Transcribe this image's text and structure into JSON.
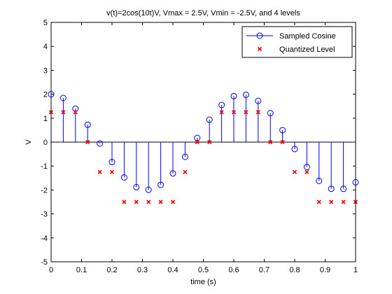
{
  "chart_data": {
    "type": "stem-scatter",
    "title": "v(t)=2cos(10t)V, Vmax = 2.5V, Vmin = -2.5V, and 4 levels",
    "xlabel": "time (s)",
    "ylabel": "V",
    "xlim": [
      0,
      1
    ],
    "ylim": [
      -5,
      5
    ],
    "x_ticks": [
      "0",
      "0.1",
      "0.2",
      "0.3",
      "0.4",
      "0.5",
      "0.6",
      "0.7",
      "0.8",
      "0.9",
      "1"
    ],
    "y_ticks": [
      "5",
      "4",
      "3",
      "2",
      "1",
      "0",
      "-1",
      "-2",
      "-3",
      "-4",
      "-5"
    ],
    "grid": false,
    "legend_position": "top-right",
    "x": [
      0,
      0.04,
      0.08,
      0.12,
      0.16,
      0.2,
      0.24,
      0.28,
      0.32,
      0.36,
      0.4,
      0.44,
      0.48,
      0.52,
      0.56,
      0.6,
      0.64,
      0.68,
      0.72,
      0.76,
      0.8,
      0.84,
      0.88,
      0.92,
      0.96,
      1.0
    ],
    "series": [
      {
        "name": "Sampled Cosine",
        "marker": "circle-stem",
        "color": "#0000ff",
        "values": [
          2.0,
          1.842,
          1.393,
          0.725,
          -0.058,
          -0.832,
          -1.475,
          -1.884,
          -1.993,
          -1.785,
          -1.307,
          -0.613,
          0.175,
          0.936,
          1.55,
          1.92,
          1.976,
          1.721,
          1.213,
          0.498,
          -0.291,
          -1.037,
          -1.622,
          -1.95,
          -1.953,
          -1.678
        ]
      },
      {
        "name": "Quantized Level",
        "marker": "x",
        "color": "#ff0000",
        "values": [
          1.25,
          1.25,
          1.25,
          0,
          -1.25,
          -1.25,
          -2.5,
          -2.5,
          -2.5,
          -2.5,
          -2.5,
          -1.25,
          0,
          0,
          1.25,
          1.25,
          1.25,
          1.25,
          0,
          0,
          -1.25,
          -1.25,
          -2.5,
          -2.5,
          -2.5,
          -2.5
        ]
      }
    ]
  }
}
